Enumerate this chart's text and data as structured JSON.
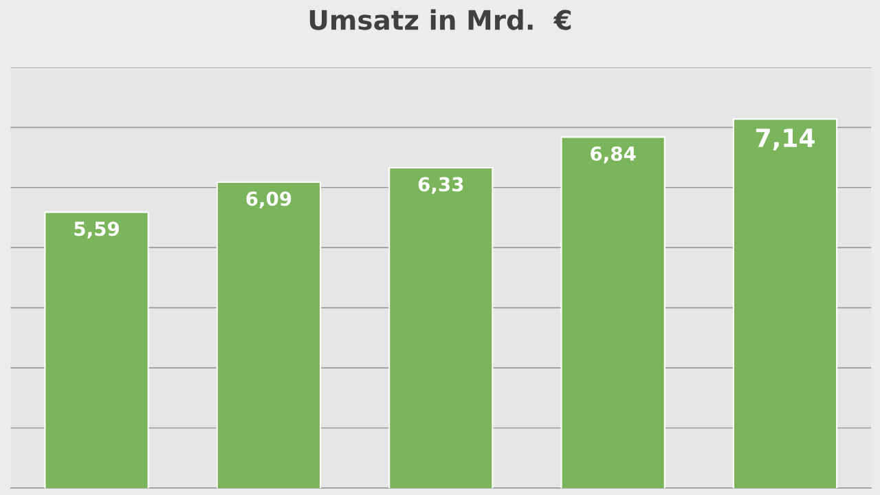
{
  "chart_data": {
    "type": "bar",
    "title": "Umsatz in Mrd.  €",
    "categories": [
      null,
      null,
      null,
      null,
      null
    ],
    "values": [
      5.59,
      6.09,
      6.33,
      6.84,
      7.14
    ],
    "value_labels": [
      "5,59",
      "6,09",
      "6,33",
      "6,84",
      "7,14"
    ],
    "color": "#7ab55c",
    "ylim": [
      1,
      8
    ],
    "yticks": [
      {
        "value": 1,
        "label": null
      },
      {
        "value": 2,
        "label": null
      },
      {
        "value": 3,
        "label": null
      },
      {
        "value": 4,
        "label": null
      },
      {
        "value": 5,
        "label": null
      },
      {
        "value": 6,
        "label": null
      },
      {
        "value": 7,
        "label": null
      },
      {
        "value": 8,
        "label": null
      }
    ],
    "grid": "y"
  }
}
